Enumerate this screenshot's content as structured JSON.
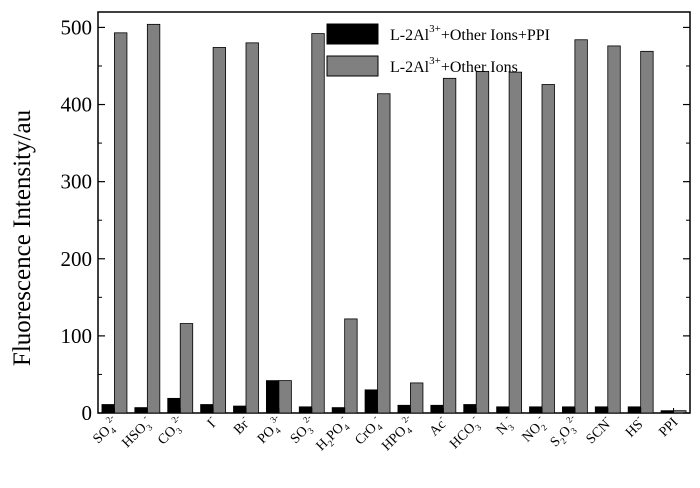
{
  "chart_data": {
    "type": "bar",
    "title": "",
    "xlabel": "",
    "ylabel": "Fluorescence Intensity/au",
    "ylim": [
      0,
      520
    ],
    "yticks": [
      0,
      100,
      200,
      300,
      400,
      500
    ],
    "grid": false,
    "legend_position": "top-right",
    "categories": [
      {
        "base": "SO",
        "sub": "4",
        "sup": "2-"
      },
      {
        "base": "HSO",
        "sub": "3",
        "sup": "-"
      },
      {
        "base": "CO",
        "sub": "3",
        "sup": "2-"
      },
      {
        "base": "I",
        "sub": "",
        "sup": "-"
      },
      {
        "base": "Br",
        "sub": "",
        "sup": "-"
      },
      {
        "base": "PO",
        "sub": "4",
        "sup": "3-"
      },
      {
        "base": "SO",
        "sub": "3",
        "sup": "2-"
      },
      {
        "base": "H",
        "sub": "2",
        "tail": "PO",
        "sub2": "4",
        "sup": "-"
      },
      {
        "base": "CrO",
        "sub": "4",
        "sup": "-"
      },
      {
        "base": "HPO",
        "sub": "4",
        "sup": "2-"
      },
      {
        "base": "Ac",
        "sub": "",
        "sup": "-"
      },
      {
        "base": "HCO",
        "sub": "3",
        "sup": "-"
      },
      {
        "base": "N",
        "sub": "3",
        "sup": "-"
      },
      {
        "base": "NO",
        "sub": "2",
        "sup": "-"
      },
      {
        "base": "S",
        "sub": "2",
        "tail": "O",
        "sub2": "3",
        "sup": "2-"
      },
      {
        "base": "SCN",
        "sub": "",
        "sup": "-"
      },
      {
        "base": "HS",
        "sub": "",
        "sup": "-"
      },
      {
        "base": "PPI",
        "sub": "",
        "sup": ""
      }
    ],
    "series": [
      {
        "name_parts": {
          "a": "L-2Al",
          "sup": "3+",
          "b": "+Other Ions+PPI"
        },
        "color": "#000000",
        "values": [
          11,
          7,
          19,
          11,
          9,
          42,
          8,
          7,
          30,
          10,
          10,
          11,
          8,
          8,
          8,
          8,
          8,
          3
        ]
      },
      {
        "name_parts": {
          "a": "L-2Al",
          "sup": "3+",
          "b": "+Other Ions"
        },
        "color": "#808080",
        "values": [
          493,
          504,
          116,
          474,
          480,
          42,
          492,
          122,
          414,
          39,
          434,
          443,
          442,
          426,
          484,
          476,
          469,
          3
        ]
      }
    ]
  }
}
